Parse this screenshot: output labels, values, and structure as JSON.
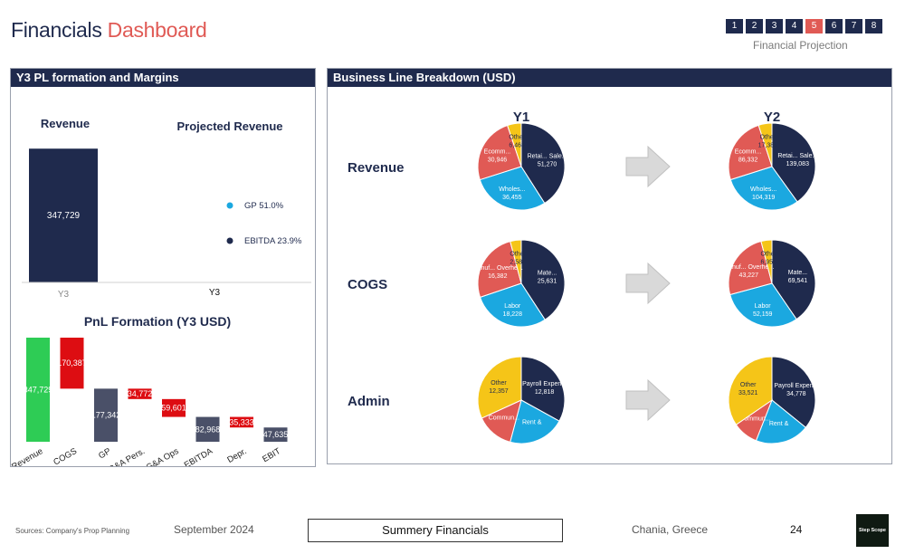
{
  "header": {
    "title_main": "Financials",
    "title_accent": "Dashboard",
    "pages": [
      "1",
      "2",
      "3",
      "4",
      "5",
      "6",
      "7",
      "8"
    ],
    "active_page": "5",
    "subtitle": "Financial Projection"
  },
  "left_panel": {
    "title": "Y3 PL formation and Margins"
  },
  "right_panel": {
    "title": "Business Line Breakdown (USD)"
  },
  "colors": {
    "navy": "#1f2a4d",
    "red": "#e05a55",
    "blue": "#1ba8e0",
    "yellow": "#f5c518",
    "green": "#2ecc55",
    "neg": "#dd0d12",
    "grey": "#4a5068"
  },
  "chart_data": [
    {
      "id": "revenue",
      "type": "bar",
      "title": "Revenue",
      "categories": [
        "Y3"
      ],
      "values": [
        347729
      ],
      "value_labels": [
        "347,729"
      ]
    },
    {
      "id": "projected",
      "type": "scatter",
      "title": "Projected Revenue",
      "categories": [
        "Y3"
      ],
      "series": [
        {
          "name": "GP",
          "value": 51.0,
          "label": "GP 51.0%",
          "color": "#1ba8e0"
        },
        {
          "name": "EBITDA",
          "value": 23.9,
          "label": "EBITDA 23.9%",
          "color": "#1f2a4d"
        }
      ]
    },
    {
      "id": "pnl",
      "type": "bar",
      "subtype": "waterfall",
      "title": "PnL Formation (Y3  USD)",
      "categories": [
        "Revenue",
        "COGS",
        "GP",
        "SG&A Pers.",
        "SG&A Ops",
        "EBITDA",
        "Depr.",
        "EBIT"
      ],
      "values": [
        347729,
        -170387,
        177342,
        -34772,
        -59601,
        82968,
        -35333,
        47635
      ],
      "labels": [
        "347,729",
        "170,387",
        "177,342",
        "34,772",
        "59,601",
        "82,968",
        "35,333",
        "47,635"
      ],
      "kinds": [
        "start",
        "neg",
        "total",
        "neg",
        "neg",
        "total",
        "neg",
        "total"
      ]
    },
    {
      "id": "business_lines",
      "type": "pie",
      "columns": [
        "Y1",
        "Y2"
      ],
      "rows": [
        {
          "name": "Revenue",
          "pies": [
            {
              "slices": [
                {
                  "label": "Retail Sales",
                  "display": "Retai... Sale...",
                  "value": 51270,
                  "value_label": "51,270",
                  "color": "#1f2a4d"
                },
                {
                  "label": "Wholesale",
                  "display": "Wholes...",
                  "value": 36455,
                  "value_label": "36,455",
                  "color": "#1ba8e0"
                },
                {
                  "label": "Ecommerce",
                  "display": "Ecomm...",
                  "value": 30946,
                  "value_label": "30,946",
                  "color": "#e05a55"
                },
                {
                  "label": "Other",
                  "display": "Other",
                  "value": 6468,
                  "value_label": "6,468",
                  "color": "#f5c518"
                }
              ]
            },
            {
              "slices": [
                {
                  "label": "Retail Sales",
                  "display": "Retai... Sale...",
                  "value": 139083,
                  "value_label": "139,083",
                  "color": "#1f2a4d"
                },
                {
                  "label": "Wholesale",
                  "display": "Wholes...",
                  "value": 104319,
                  "value_label": "104,319",
                  "color": "#1ba8e0"
                },
                {
                  "label": "Ecommerce",
                  "display": "Ecomm...",
                  "value": 86332,
                  "value_label": "86,332",
                  "color": "#e05a55"
                },
                {
                  "label": "Other",
                  "display": "Other",
                  "value": 17386,
                  "value_label": "17,386",
                  "color": "#f5c518"
                }
              ]
            }
          ]
        },
        {
          "name": "COGS",
          "pies": [
            {
              "slices": [
                {
                  "label": "Materials",
                  "display": "Mate...",
                  "value": 25631,
                  "value_label": "25,631",
                  "color": "#1f2a4d"
                },
                {
                  "label": "Labor",
                  "display": "Labor",
                  "value": 18228,
                  "value_label": "18,228",
                  "color": "#1ba8e0"
                },
                {
                  "label": "Manufacturing Overhead",
                  "display": "Manuf... Overhe...",
                  "value": 16382,
                  "value_label": "16,382",
                  "color": "#e05a55"
                },
                {
                  "label": "Other",
                  "display": "Other",
                  "value": 2584,
                  "value_label": "2,584",
                  "color": "#f5c518"
                }
              ]
            },
            {
              "slices": [
                {
                  "label": "Materials",
                  "display": "Mate...",
                  "value": 69541,
                  "value_label": "69,541",
                  "color": "#1f2a4d"
                },
                {
                  "label": "Labor",
                  "display": "Labor",
                  "value": 52159,
                  "value_label": "52,159",
                  "color": "#1ba8e0"
                },
                {
                  "label": "Manufacturing Overhead",
                  "display": "Manuf... Overhe...",
                  "value": 43227,
                  "value_label": "43,227",
                  "color": "#e05a55"
                },
                {
                  "label": "Other",
                  "display": "Other",
                  "value": 6955,
                  "value_label": "6,955",
                  "color": "#f5c518"
                }
              ]
            }
          ]
        },
        {
          "name": "Admin",
          "pies": [
            {
              "slices": [
                {
                  "label": "Payroll Expenses",
                  "display": "Payroll Expen...",
                  "value": 12818,
                  "value_label": "12,818",
                  "color": "#1f2a4d"
                },
                {
                  "label": "Rent & Utilities",
                  "display": "Rent &",
                  "value": 8200,
                  "value_label": "",
                  "color": "#1ba8e0"
                },
                {
                  "label": "Communication",
                  "display": "Commun...",
                  "value": 5450,
                  "value_label": "",
                  "color": "#e05a55"
                },
                {
                  "label": "Other",
                  "display": "Other",
                  "value": 12357,
                  "value_label": "12,357",
                  "color": "#f5c518"
                }
              ]
            },
            {
              "slices": [
                {
                  "label": "Payroll Expenses",
                  "display": "Payroll Expen...",
                  "value": 34778,
                  "value_label": "34,778",
                  "color": "#1f2a4d"
                },
                {
                  "label": "Rent & Utilities",
                  "display": "Rent &",
                  "value": 19500,
                  "value_label": "",
                  "color": "#1ba8e0"
                },
                {
                  "label": "Communication",
                  "display": "Commun...",
                  "value": 9200,
                  "value_label": "",
                  "color": "#e05a55"
                },
                {
                  "label": "Other",
                  "display": "Other",
                  "value": 33521,
                  "value_label": "33,521",
                  "color": "#f5c518"
                }
              ]
            }
          ]
        }
      ]
    }
  ],
  "footer": {
    "sources": "Sources: Company's Prop Planning",
    "date": "September 2024",
    "section": "Summery Financials",
    "location": "Chania, Greece",
    "page_number": "24",
    "logo_text": "Step Scope"
  }
}
